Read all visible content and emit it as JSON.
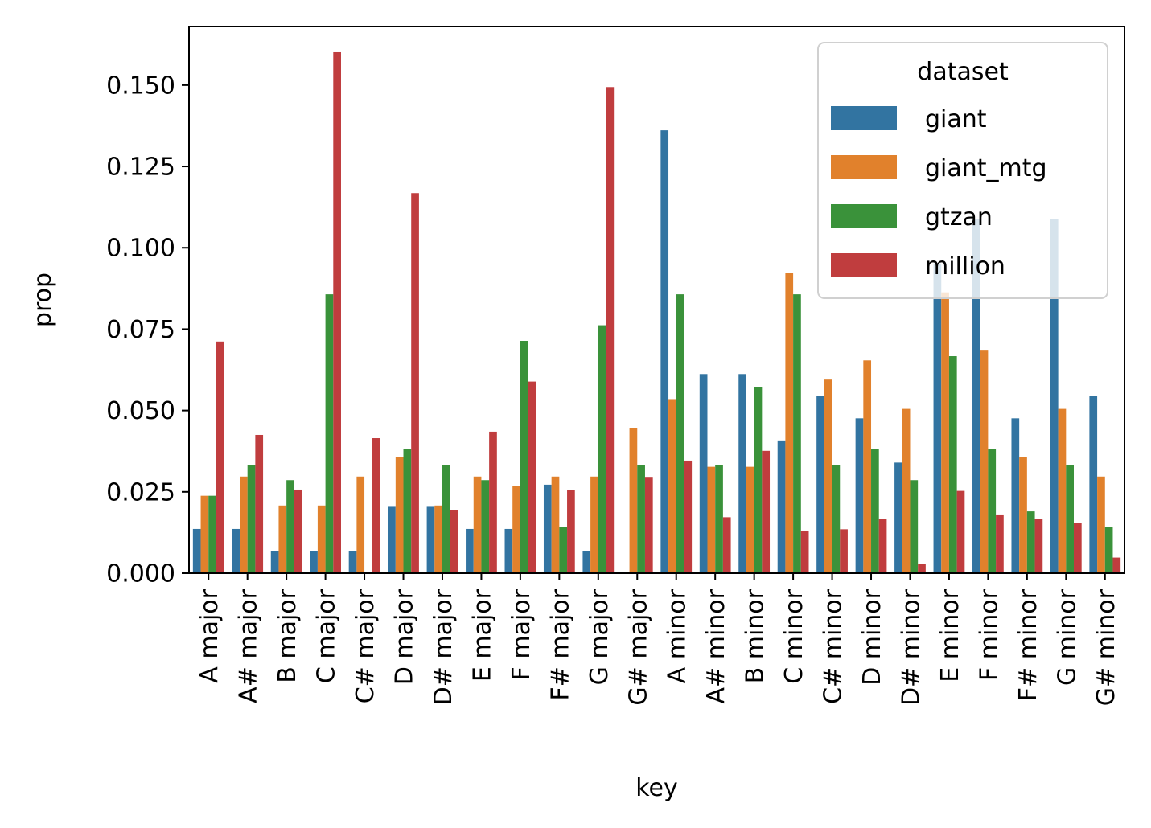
{
  "chart_data": {
    "type": "bar",
    "title": "",
    "xlabel": "key",
    "ylabel": "prop",
    "ylim": [
      0,
      0.168
    ],
    "yticks": [
      "0.000",
      "0.025",
      "0.050",
      "0.075",
      "0.100",
      "0.125",
      "0.150"
    ],
    "grid": false,
    "legend": {
      "title": "dataset",
      "position": "top-right"
    },
    "categories": [
      "A major",
      "A# major",
      "B major",
      "C major",
      "C# major",
      "D major",
      "D# major",
      "E major",
      "F major",
      "F# major",
      "G major",
      "G# major",
      "A minor",
      "A# minor",
      "B minor",
      "C minor",
      "C# minor",
      "D minor",
      "D# minor",
      "E minor",
      "F minor",
      "F# minor",
      "G minor",
      "G# minor"
    ],
    "series": [
      {
        "name": "giant",
        "color": "#3274a1",
        "values": [
          0.0136,
          0.0136,
          0.0068,
          0.0068,
          0.0068,
          0.0204,
          0.0204,
          0.0136,
          0.0136,
          0.0272,
          0.0068,
          0.0,
          0.1361,
          0.0612,
          0.0612,
          0.0408,
          0.0544,
          0.0476,
          0.034,
          0.0952,
          0.1088,
          0.0476,
          0.1088,
          0.0544
        ]
      },
      {
        "name": "giant_mtg",
        "color": "#e1812c",
        "values": [
          0.0238,
          0.0297,
          0.0208,
          0.0208,
          0.0297,
          0.0357,
          0.0208,
          0.0297,
          0.0267,
          0.0297,
          0.0297,
          0.0446,
          0.0535,
          0.0327,
          0.0327,
          0.0922,
          0.0595,
          0.0654,
          0.0505,
          0.0863,
          0.0684,
          0.0357,
          0.0505,
          0.0297
        ]
      },
      {
        "name": "gtzan",
        "color": "#3a923a",
        "values": [
          0.0238,
          0.0333,
          0.0286,
          0.0857,
          0.0,
          0.0381,
          0.0333,
          0.0286,
          0.0714,
          0.0143,
          0.0762,
          0.0333,
          0.0857,
          0.0333,
          0.0571,
          0.0857,
          0.0333,
          0.0381,
          0.0286,
          0.0667,
          0.0381,
          0.019,
          0.0333,
          0.0143
        ]
      },
      {
        "name": "million",
        "color": "#c03d3e",
        "values": [
          0.0712,
          0.0425,
          0.0257,
          0.1601,
          0.0415,
          0.1168,
          0.0195,
          0.0435,
          0.0589,
          0.0255,
          0.1494,
          0.0296,
          0.0346,
          0.0172,
          0.0376,
          0.0131,
          0.0135,
          0.0166,
          0.0029,
          0.0253,
          0.0178,
          0.0167,
          0.0155,
          0.0048
        ]
      }
    ]
  }
}
